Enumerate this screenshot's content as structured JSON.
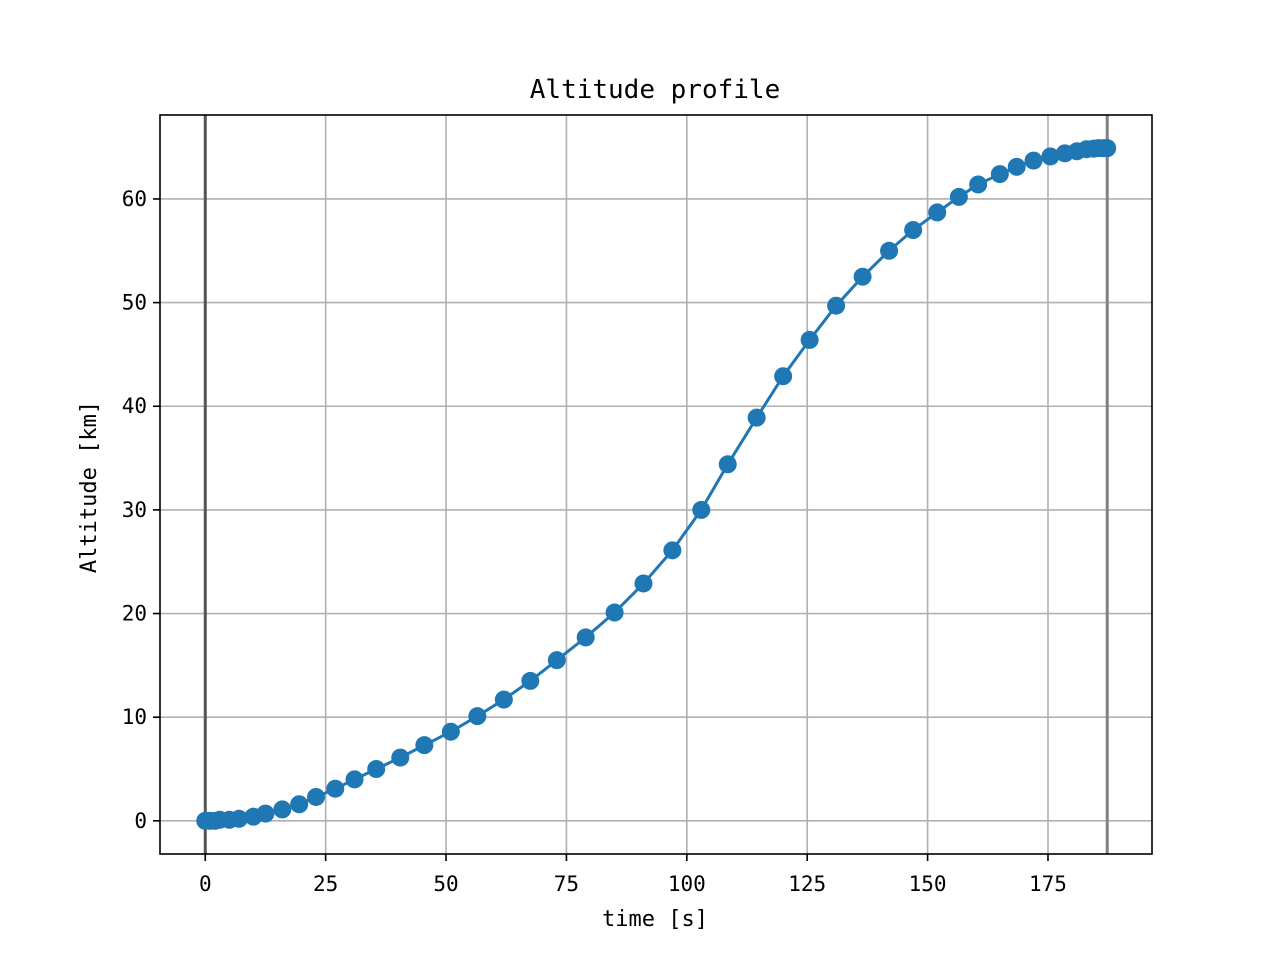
{
  "chart_data": {
    "type": "line",
    "title": "Altitude profile",
    "xlabel": "time [s]",
    "ylabel": "Altitude [km]",
    "xlim": [
      -9.4,
      196.6
    ],
    "ylim": [
      -3.2,
      68.1
    ],
    "xticks": [
      0,
      25,
      50,
      75,
      100,
      125,
      150,
      175
    ],
    "yticks": [
      0,
      10,
      20,
      30,
      40,
      50,
      60
    ],
    "grid": true,
    "vlines": [
      {
        "x": 0,
        "color": "#555555"
      },
      {
        "x": 187.3,
        "color": "#808080"
      }
    ],
    "series": [
      {
        "color": "#1f77b4",
        "marker": "circle",
        "x": [
          0,
          1,
          2,
          3,
          5,
          7,
          10,
          12.5,
          16,
          19.5,
          23,
          27,
          31,
          35.5,
          40.5,
          45.5,
          51,
          56.5,
          62,
          67.5,
          73,
          79,
          85,
          91,
          97,
          103,
          108.5,
          114.5,
          120,
          125.5,
          131,
          136.5,
          142,
          147,
          152,
          156.5,
          160.5,
          165,
          168.5,
          172,
          175.5,
          178.5,
          181,
          183,
          184.5,
          185.5,
          186.5,
          187.3
        ],
        "y": [
          0,
          0,
          0,
          0.1,
          0.1,
          0.2,
          0.4,
          0.7,
          1.1,
          1.6,
          2.3,
          3.1,
          4.0,
          5.0,
          6.1,
          7.3,
          8.6,
          10.1,
          11.7,
          13.5,
          15.5,
          17.7,
          20.1,
          22.9,
          26.1,
          30.0,
          34.4,
          38.9,
          42.9,
          46.4,
          49.7,
          52.5,
          55.0,
          57.0,
          58.7,
          60.2,
          61.4,
          62.4,
          63.1,
          63.7,
          64.1,
          64.4,
          64.6,
          64.8,
          64.85,
          64.9,
          64.9,
          64.9
        ]
      }
    ]
  }
}
